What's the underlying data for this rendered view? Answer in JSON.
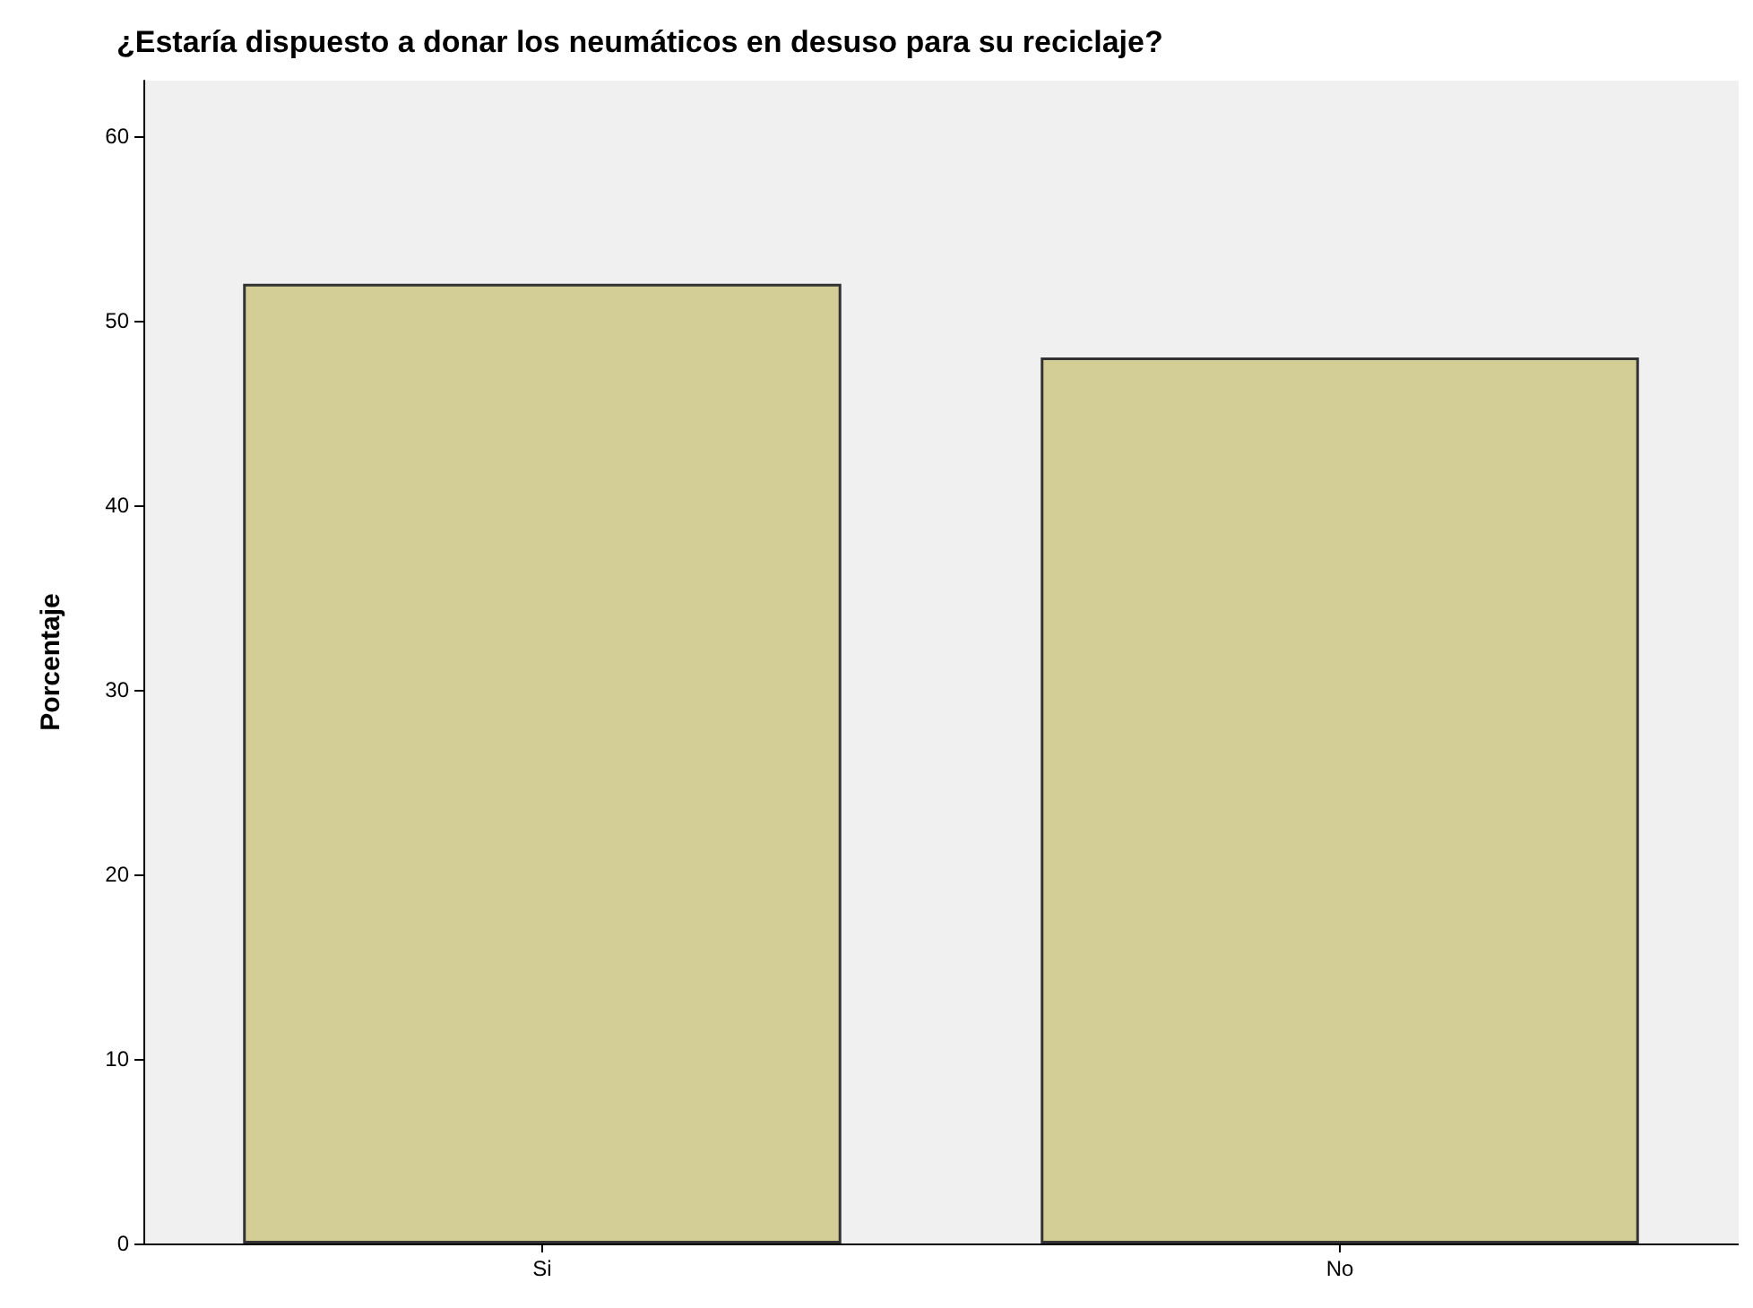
{
  "chart_data": {
    "type": "bar",
    "title": "¿Estaría dispuesto a donar los neumáticos en desuso para su reciclaje?",
    "ylabel": "Porcentaje",
    "categories": [
      "Si",
      "No"
    ],
    "values": [
      52,
      48
    ],
    "color": "#d3cd96",
    "ylim": [
      0,
      63
    ],
    "yticks": [
      0,
      10,
      20,
      30,
      40,
      50,
      60
    ],
    "grid": false
  }
}
